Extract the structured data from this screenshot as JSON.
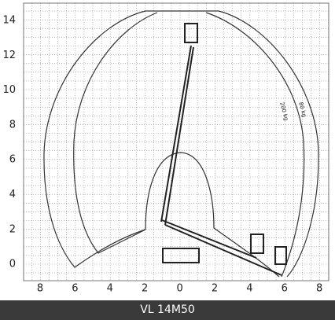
{
  "axes": {
    "x_tick_labels": [
      "8",
      "6",
      "4",
      "2",
      "0",
      "2",
      "4",
      "6",
      "8"
    ],
    "y_tick_labels": [
      "14",
      "12",
      "10",
      "8",
      "6",
      "4",
      "2",
      "0"
    ]
  },
  "curve_labels": [
    "200 kg",
    "80 kg"
  ],
  "footer": {
    "title": "VL 14M50"
  }
}
